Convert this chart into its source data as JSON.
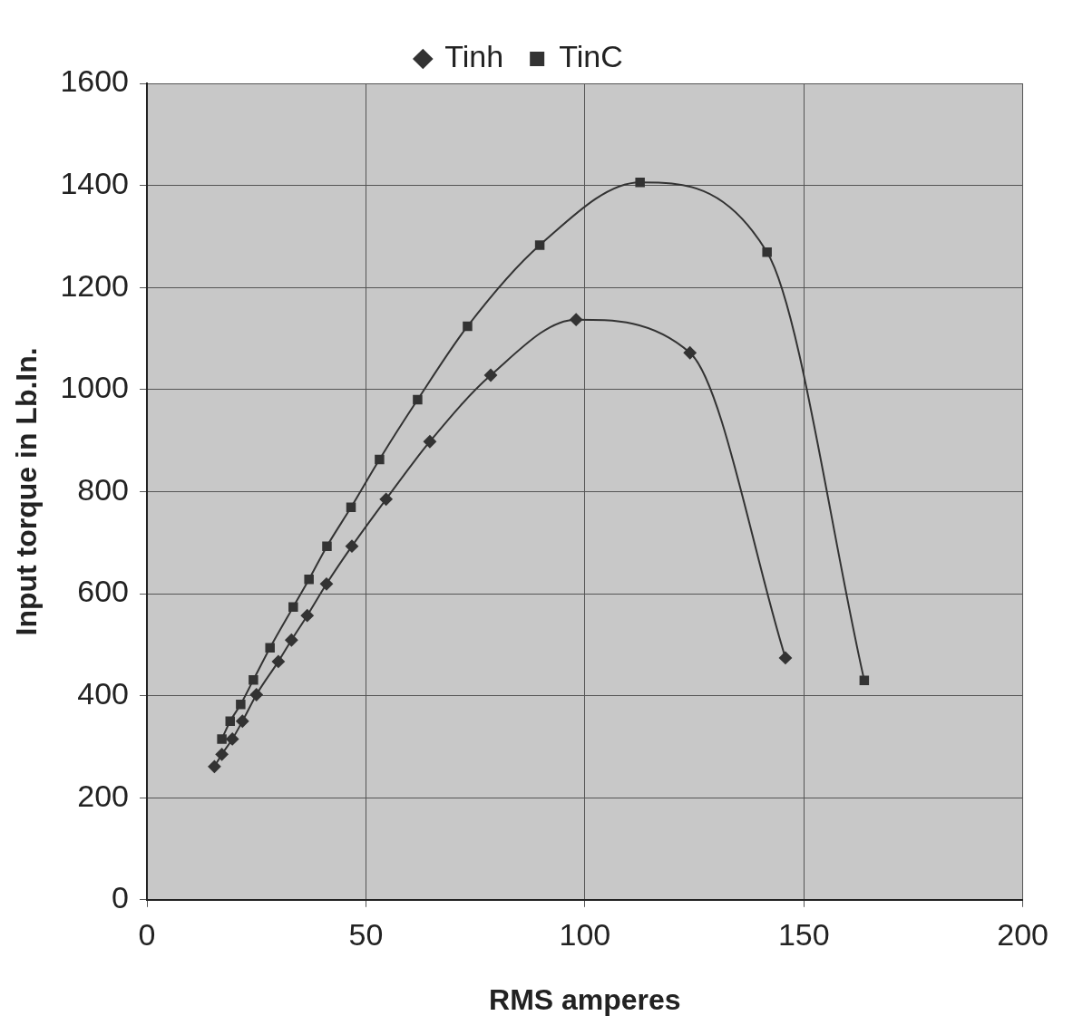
{
  "chart_data": {
    "type": "line",
    "xlabel": "RMS amperes",
    "ylabel": "Input torque in Lb.In.",
    "xlim": [
      0,
      200
    ],
    "xticks": [
      0,
      50,
      100,
      150,
      200
    ],
    "ylim": [
      0,
      1600
    ],
    "yticks": [
      0,
      200,
      400,
      600,
      800,
      1000,
      1200,
      1400,
      1600
    ],
    "grid": true,
    "legend": "top",
    "series": [
      {
        "name": "Tinh",
        "color": "#333333",
        "marker": "diamond",
        "x": [
          15.4,
          17.1,
          19.5,
          21.8,
          25,
          30,
          33,
          36.6,
          41,
          46.8,
          54.6,
          64.6,
          78.5,
          98,
          124,
          145.8
        ],
        "values": [
          261,
          285,
          315,
          350,
          402,
          467,
          509,
          557,
          619,
          693,
          785,
          898,
          1028,
          1137,
          1072,
          474
        ]
      },
      {
        "name": "TinC",
        "color": "#333333",
        "marker": "square",
        "x": [
          17.1,
          19,
          21.4,
          24.3,
          28.1,
          33.4,
          37,
          41.1,
          46.6,
          53.1,
          61.8,
          73.2,
          89.7,
          112.6,
          141.6,
          163.8
        ],
        "values": [
          315,
          350,
          383,
          431,
          494,
          574,
          628,
          693,
          769,
          863,
          980,
          1124,
          1283,
          1406,
          1269,
          430
        ]
      }
    ]
  }
}
